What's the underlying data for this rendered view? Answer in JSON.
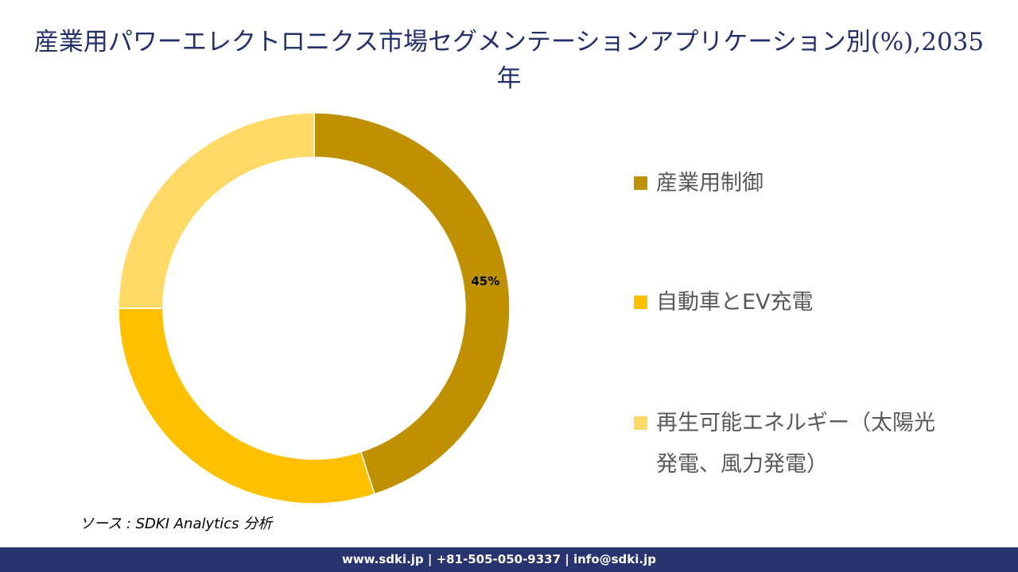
{
  "chart_data": {
    "type": "pie",
    "subtype": "donut",
    "title": "産業用パワーエレクトロニクス市場セグメンテーションアプリケーション別(%),2035年",
    "categories": [
      "産業用制御",
      "自動車とEV充電",
      "再生可能エネルギー（太陽光発電、風力発電）"
    ],
    "values": [
      45,
      30,
      25
    ],
    "colors": [
      "#BF9000",
      "#FFC000",
      "#FFD966"
    ],
    "data_labels": [
      "45%",
      "",
      ""
    ],
    "legend_position": "right"
  },
  "source": "ソース : SDKI Analytics 分析",
  "footer": "www.sdki.jp | +81-505-050-9337 | info@sdki.jp"
}
